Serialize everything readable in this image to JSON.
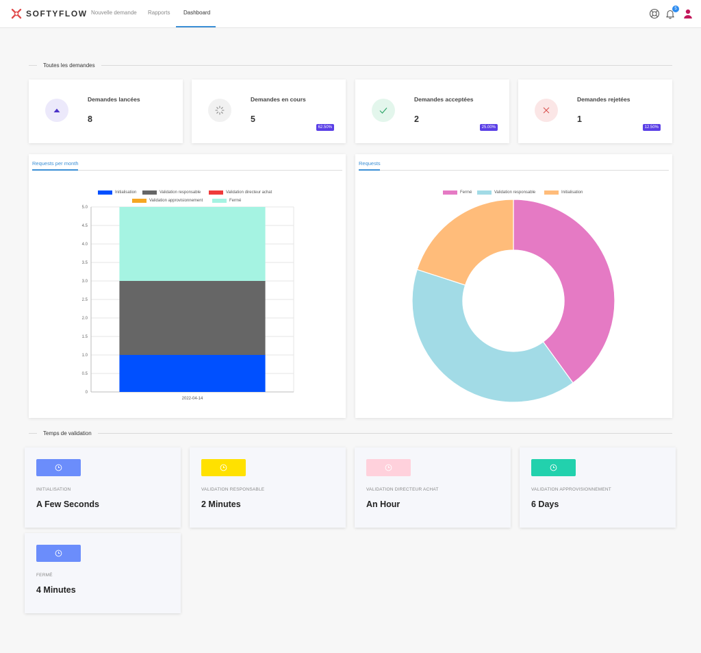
{
  "brand": {
    "name": "SOFTYFLOW",
    "logo_icon": "x-cross-logo",
    "logo_color": "#e14b4b"
  },
  "nav": {
    "links": [
      {
        "label": "Nouvelle demande"
      },
      {
        "label": "Rapports"
      },
      {
        "label": "Dashboard",
        "active": true
      }
    ],
    "icons": {
      "help": "lifebuoy-icon",
      "notifications": "bell-icon",
      "user": "user-icon"
    },
    "notification_count": "5",
    "accent": "#3a8fd6"
  },
  "requests_section": {
    "title": "Toutes les demandes"
  },
  "stats": [
    {
      "title": "Demandes lancées",
      "value": "8",
      "icon": "triangle-up-icon",
      "icon_color": "#4b32c8",
      "bg": "#ece9fb",
      "badge": ""
    },
    {
      "title": "Demandes en cours",
      "value": "5",
      "icon": "spinner-icon",
      "icon_color": "#888888",
      "bg": "#f1f1f1",
      "badge": "62.50%"
    },
    {
      "title": "Demandes acceptées",
      "value": "2",
      "icon": "check-icon",
      "icon_color": "#2fa66a",
      "bg": "#e3f6ec",
      "badge": "25.00%"
    },
    {
      "title": "Demandes rejetées",
      "value": "1",
      "icon": "x-icon",
      "icon_color": "#d9534f",
      "bg": "#fbe6e6",
      "badge": "12.50%"
    }
  ],
  "chart_data": [
    {
      "type": "bar",
      "tab": "Requests per month",
      "categories": [
        "2022-04-14"
      ],
      "series": [
        {
          "name": "Initialisation",
          "values": [
            1
          ],
          "color": "#0050ff"
        },
        {
          "name": "Validation responsable",
          "values": [
            2
          ],
          "color": "#666666"
        },
        {
          "name": "Validation directeur achat",
          "values": [
            0
          ],
          "color": "#ef3b3b"
        },
        {
          "name": "Validation approvisionnement",
          "values": [
            0
          ],
          "color": "#f5a623"
        },
        {
          "name": "Fermé",
          "values": [
            2
          ],
          "color": "#a5f3e2"
        }
      ],
      "ylim": [
        0,
        5
      ],
      "yticks": [
        "0",
        "0.5",
        "1.0",
        "1.5",
        "2.0",
        "2.5",
        "3.0",
        "3.5",
        "4.0",
        "4.5",
        "5.0"
      ],
      "stacked": true,
      "grid": true,
      "legend": "top"
    },
    {
      "type": "pie",
      "tab": "Requests",
      "donut": true,
      "labels": [
        "Fermé",
        "Validation responsable",
        "Initialisation"
      ],
      "values": [
        2,
        2,
        1
      ],
      "colors": [
        "#e57ac4",
        "#a2dbe6",
        "#ffbc7a"
      ],
      "legend": "top"
    }
  ],
  "validation_section": {
    "title": "Temps de validation"
  },
  "validation_times": [
    {
      "label": "Initialisation",
      "value": "A Few Seconds",
      "color": "#6b8dfb",
      "icon": "clock-icon"
    },
    {
      "label": "Validation responsable",
      "value": "2 Minutes",
      "color": "#ffe100",
      "icon": "clock-icon"
    },
    {
      "label": "Validation directeur achat",
      "value": "An Hour",
      "color": "#ffd1dc",
      "icon": "clock-icon"
    },
    {
      "label": "Validation approvisionnement",
      "value": "6 Days",
      "color": "#22d1ad",
      "icon": "clock-icon"
    },
    {
      "label": "Fermé",
      "value": "4 Minutes",
      "color": "#6b8dfb",
      "icon": "clock-icon"
    }
  ]
}
